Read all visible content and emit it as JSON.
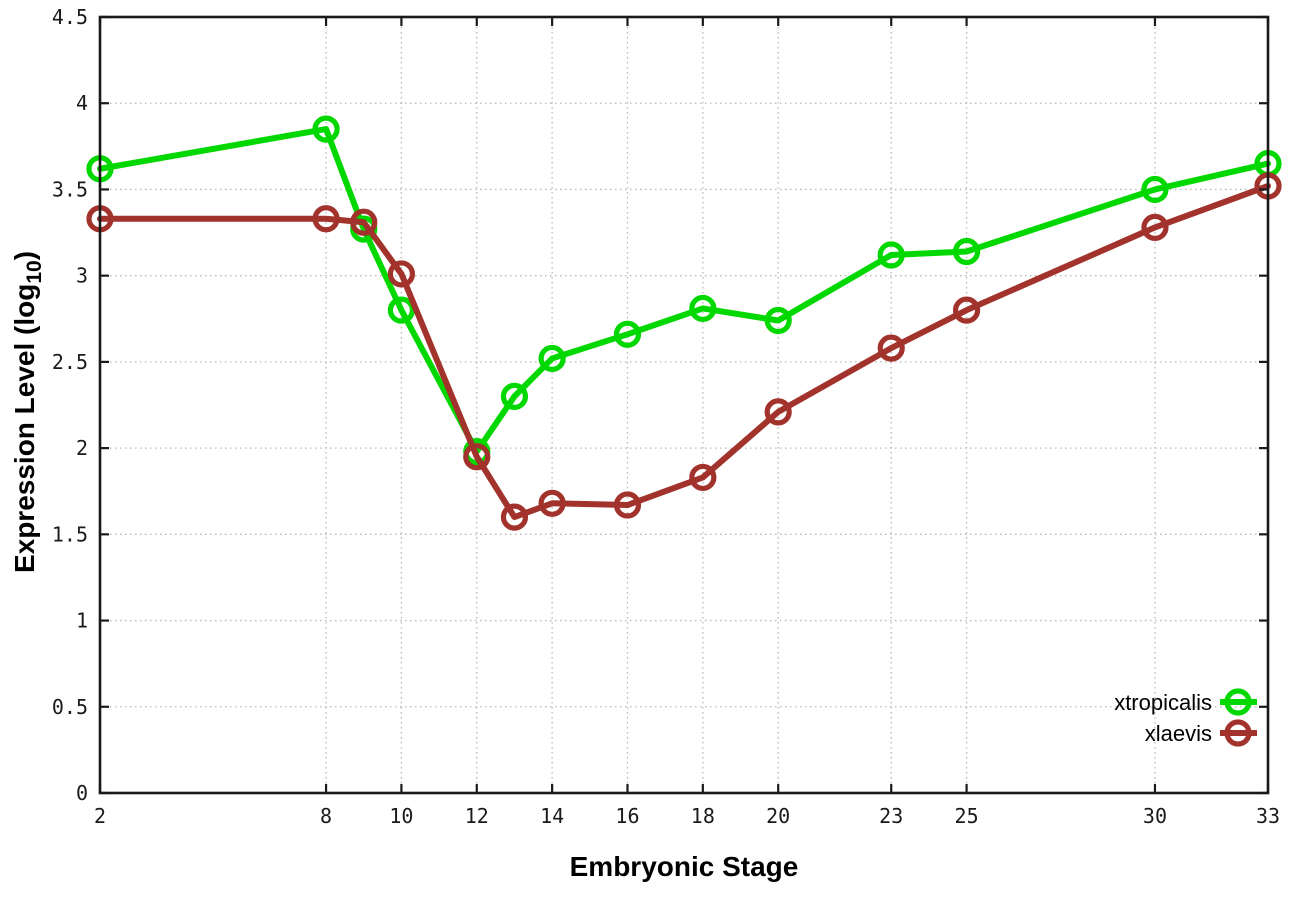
{
  "chart_data": {
    "type": "line",
    "title": "",
    "xlabel": "Embryonic Stage",
    "ylabel": {
      "main": "Expression Level (log",
      "sub": "10",
      "suffix": ")"
    },
    "x": [
      2,
      8,
      9,
      10,
      12,
      13,
      14,
      16,
      18,
      20,
      23,
      25,
      30,
      33
    ],
    "series": [
      {
        "name": "xtropicalis",
        "color": "#00d800",
        "values": [
          3.62,
          3.85,
          3.27,
          2.8,
          1.98,
          2.3,
          2.52,
          2.66,
          2.81,
          2.74,
          3.12,
          3.14,
          3.5,
          3.65
        ]
      },
      {
        "name": "xlaevis",
        "color": "#a2322c",
        "values": [
          3.33,
          3.33,
          3.31,
          3.01,
          1.95,
          1.6,
          1.68,
          1.67,
          1.83,
          2.21,
          2.58,
          2.8,
          3.28,
          3.52
        ]
      }
    ],
    "x_ticks": [
      2,
      8,
      10,
      12,
      14,
      16,
      18,
      20,
      23,
      25,
      30,
      33
    ],
    "x_tick_labels": [
      "2",
      "8",
      "10",
      "12",
      "14",
      "16",
      "18",
      "20",
      "23",
      "25",
      "30",
      "33"
    ],
    "y_ticks": [
      0,
      0.5,
      1,
      1.5,
      2,
      2.5,
      3,
      3.5,
      4,
      4.5
    ],
    "y_tick_labels": [
      "0",
      "0.5",
      "1",
      "1.5",
      "2",
      "2.5",
      "3",
      "3.5",
      "4",
      "4.5"
    ],
    "xlim": [
      2,
      33
    ],
    "ylim": [
      0,
      4.5
    ],
    "grid": true,
    "grid_style": "dotted",
    "legend_position": "bottom-right",
    "legend": [
      "xtropicalis",
      "xlaevis"
    ],
    "marker": "open-circle",
    "background_color": "#ffffff",
    "grid_color": "#b8b8b8",
    "axis_color": "#1a1a1a"
  }
}
